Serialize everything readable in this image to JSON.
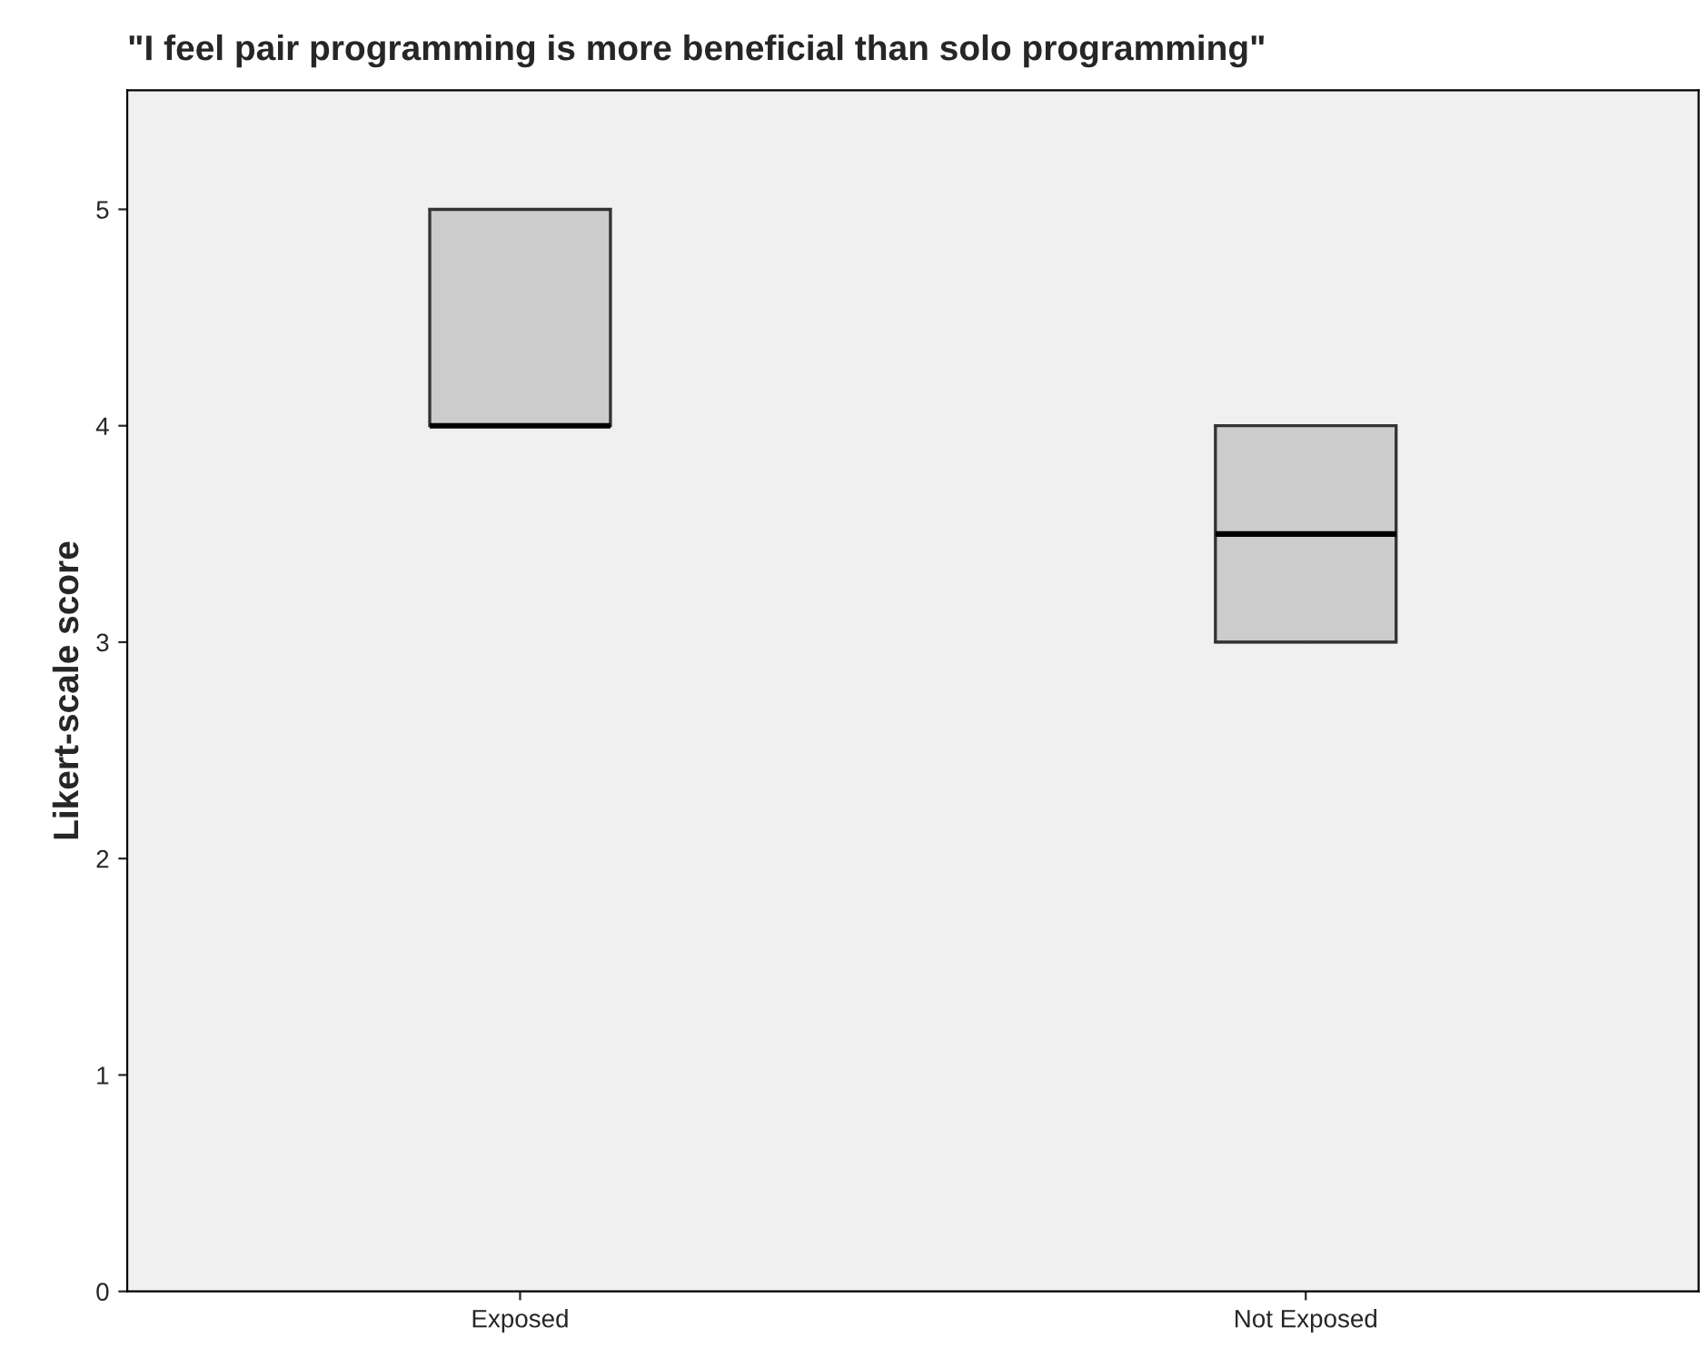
{
  "chart_data": {
    "type": "box",
    "title": "\"I feel pair programming is more beneficial than solo programming\"",
    "ylabel": "Likert-scale score",
    "categories": [
      "Exposed",
      "Not Exposed"
    ],
    "boxes": [
      {
        "low": 4,
        "q1": 4,
        "median": 4,
        "q3": 5,
        "high": 5
      },
      {
        "low": 3,
        "q1": 3,
        "median": 3.5,
        "q3": 4,
        "high": 4
      }
    ],
    "color": "#cccccc",
    "ylim": [
      0,
      5.55
    ],
    "yticks": [
      0,
      1,
      2,
      3,
      4,
      5
    ],
    "grid": false
  }
}
